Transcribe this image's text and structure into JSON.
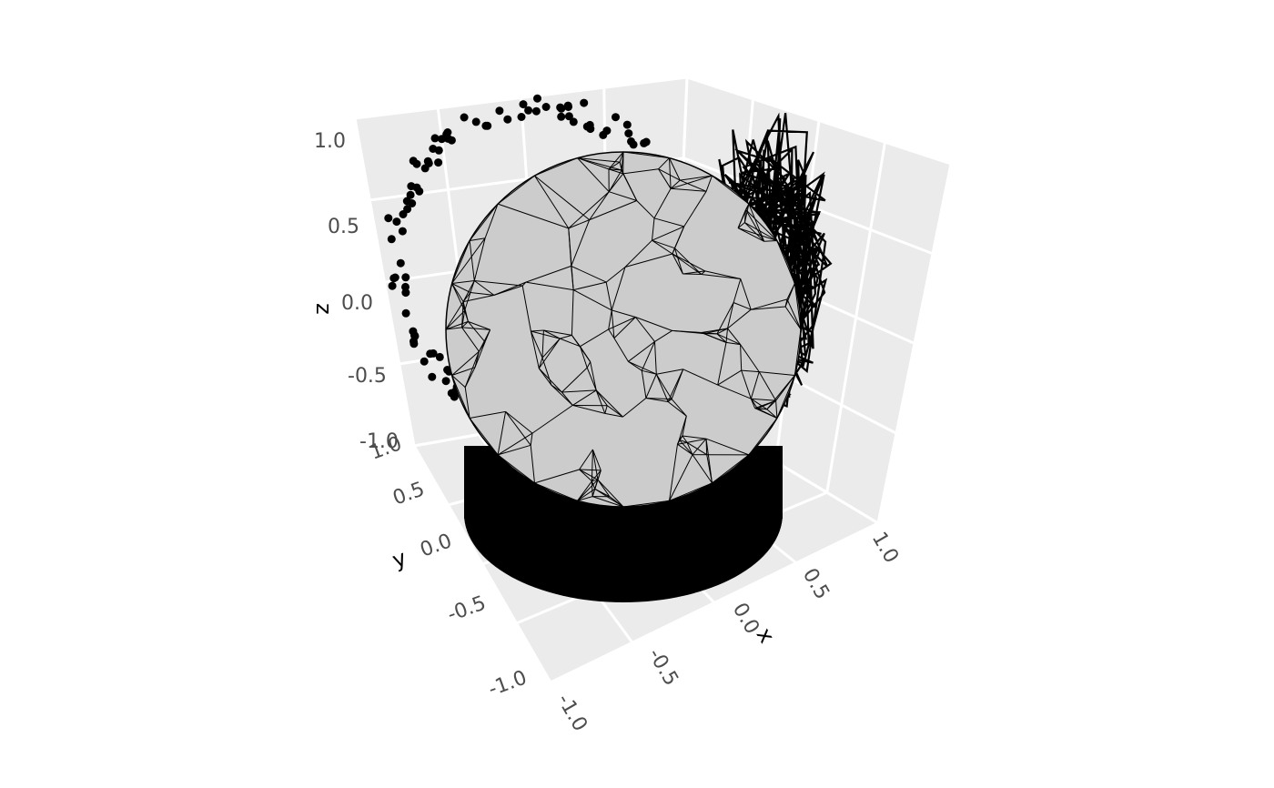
{
  "chart_data": {
    "type": "3d-scatter-surface",
    "title": "",
    "axes": {
      "x": {
        "label": "x",
        "range": [
          -1.0,
          1.0
        ],
        "ticks": [
          "-1.0",
          "-0.5",
          "0.0",
          "0.5",
          "1.0"
        ]
      },
      "y": {
        "label": "y",
        "range": [
          -1.0,
          1.0
        ],
        "ticks": [
          "-1.0",
          "-0.5",
          "0.0",
          "0.5",
          "1.0"
        ]
      },
      "z": {
        "label": "z",
        "range": [
          -1.0,
          1.0
        ],
        "ticks": [
          "-1.0",
          "-0.5",
          "0.0",
          "0.5",
          "1.0"
        ]
      }
    },
    "grid": true,
    "panel_color": "#ebebeb",
    "grid_color": "#ffffff",
    "layers": [
      {
        "kind": "sphere-mesh",
        "center": [
          0,
          0,
          0
        ],
        "radius": 1.0,
        "fill": "#cccccc",
        "edge": "#000000"
      },
      {
        "kind": "points",
        "projection": "yz-wall",
        "color": "#000000"
      },
      {
        "kind": "path",
        "projection": "xz-wall",
        "color": "#000000"
      },
      {
        "kind": "filled-shadow",
        "projection": "xy-floor",
        "color": "#000000"
      }
    ]
  }
}
